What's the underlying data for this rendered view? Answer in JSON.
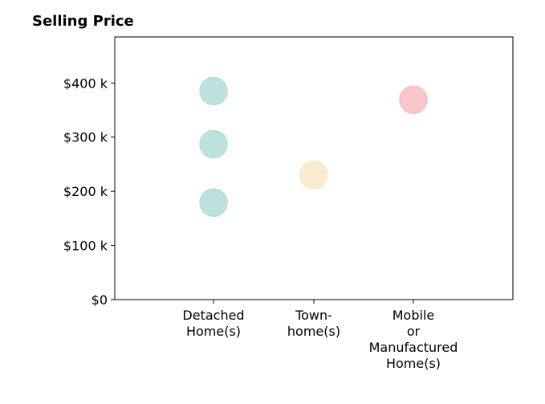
{
  "chart_data": {
    "type": "scatter",
    "title": "Selling Price",
    "xlabel": "",
    "ylabel": "",
    "categories": [
      "Detached Home(s)",
      "Town-home(s)",
      "Mobile or Manufactured Home(s)"
    ],
    "category_tick_lines": [
      [
        "Detached",
        "Home(s)"
      ],
      [
        "Town-",
        "home(s)"
      ],
      [
        "Mobile",
        "or",
        "Manufactured",
        "Home(s)"
      ]
    ],
    "y_ticks": [
      {
        "value": 0,
        "label": "$0"
      },
      {
        "value": 100000,
        "label": "$100 k"
      },
      {
        "value": 200000,
        "label": "$200 k"
      },
      {
        "value": 300000,
        "label": "$300 k"
      },
      {
        "value": 400000,
        "label": "$400 k"
      }
    ],
    "ylim": [
      0,
      485000
    ],
    "grid": false,
    "points": [
      {
        "category": "Detached Home(s)",
        "value": 385000,
        "color": "#b2ddd8"
      },
      {
        "category": "Detached Home(s)",
        "value": 287000,
        "color": "#b2ddd8"
      },
      {
        "category": "Detached Home(s)",
        "value": 179000,
        "color": "#b2ddd8"
      },
      {
        "category": "Town-home(s)",
        "value": 230000,
        "color": "#f8e8c6"
      },
      {
        "category": "Mobile or Manufactured Home(s)",
        "value": 369000,
        "color": "#f7bcc0"
      }
    ]
  }
}
